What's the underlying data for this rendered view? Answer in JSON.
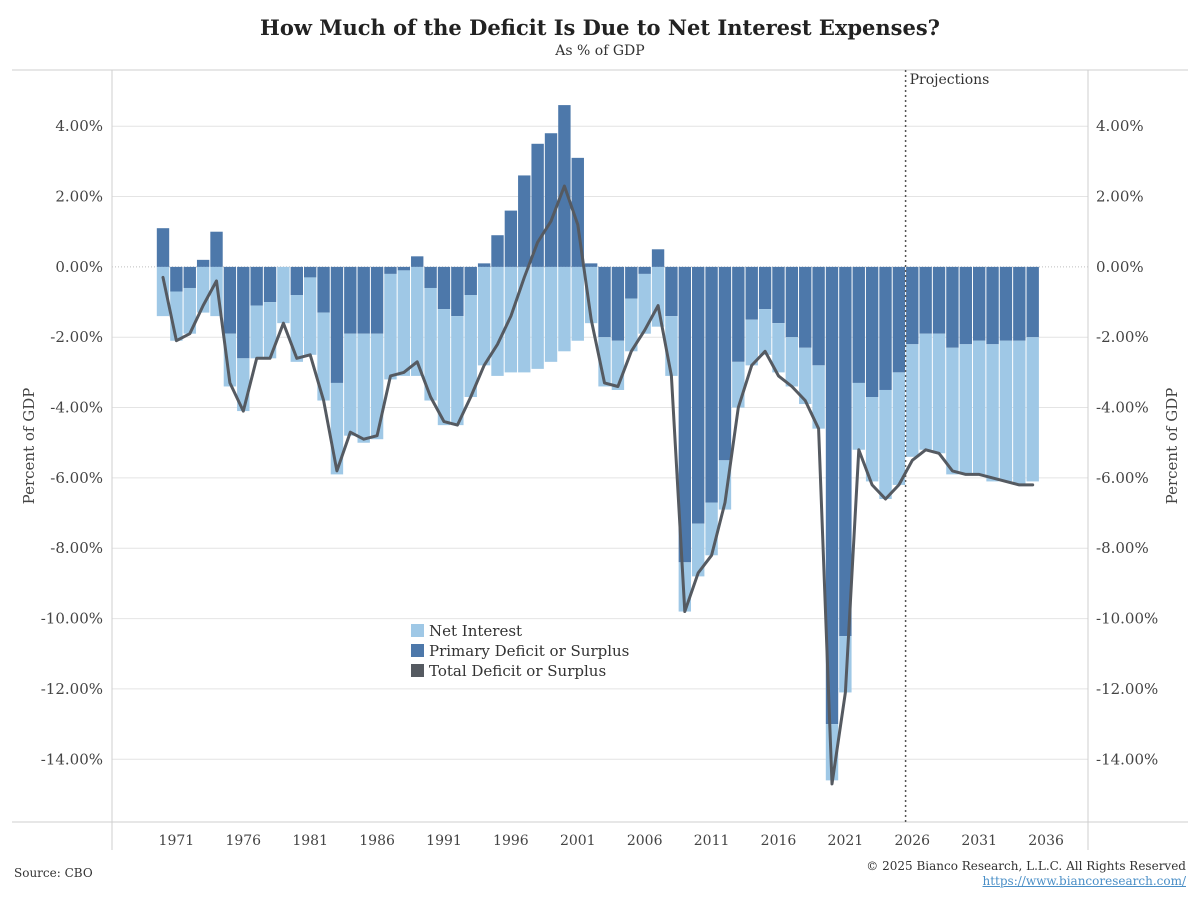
{
  "title": "How Much of the Deficit Is Due to Net Interest Expenses?",
  "subtitle": "As % of GDP",
  "source": "Source: CBO",
  "copyright": "© 2025 Bianco Research, L.L.C. All Rights Reserved",
  "url": "https://www.biancoresearch.com/",
  "colors": {
    "net_interest": "#9fc8e6",
    "primary": "#4d78aa",
    "total_line": "#555a61",
    "projection_line": "#555555",
    "grid": "#e4e4e4"
  },
  "chart_data": {
    "type": "bar",
    "title": "How Much of the Deficit Is Due to Net Interest Expenses?",
    "subtitle": "As % of GDP",
    "ylabel_left": "Percent of GDP",
    "ylabel_right": "Percent of GDP",
    "ylim": [
      -15.5,
      5.5
    ],
    "y_ticks": [
      4,
      2,
      0,
      -2,
      -4,
      -6,
      -8,
      -10,
      -12,
      -14
    ],
    "y_tick_labels": [
      "4.00%",
      "2.00%",
      "0.00%",
      "-2.00%",
      "-4.00%",
      "-6.00%",
      "-8.00%",
      "-10.00%",
      "-12.00%",
      "-14.00%"
    ],
    "x_ticks": [
      1971,
      1976,
      1981,
      1986,
      1991,
      1996,
      2001,
      2006,
      2011,
      2016,
      2021,
      2026,
      2031,
      2036
    ],
    "x_tick_labels": [
      "1971",
      "1976",
      "1981",
      "1986",
      "1991",
      "1996",
      "2001",
      "2006",
      "2011",
      "2016",
      "2021",
      "2026",
      "2031",
      "2036"
    ],
    "annotation": "Projections",
    "projection_start": 2025.5,
    "legend": [
      "Net Interest",
      "Primary Deficit or Surplus",
      "Total Deficit or Surplus"
    ],
    "legend_position": "lower-center",
    "x": [
      1970,
      1971,
      1972,
      1973,
      1974,
      1975,
      1976,
      1977,
      1978,
      1979,
      1980,
      1981,
      1982,
      1983,
      1984,
      1985,
      1986,
      1987,
      1988,
      1989,
      1990,
      1991,
      1992,
      1993,
      1994,
      1995,
      1996,
      1997,
      1998,
      1999,
      2000,
      2001,
      2002,
      2003,
      2004,
      2005,
      2006,
      2007,
      2008,
      2009,
      2010,
      2011,
      2012,
      2013,
      2014,
      2015,
      2016,
      2017,
      2018,
      2019,
      2020,
      2021,
      2022,
      2023,
      2024,
      2025,
      2026,
      2027,
      2028,
      2029,
      2030,
      2031,
      2032,
      2033,
      2034,
      2035
    ],
    "series": [
      {
        "name": "Net Interest",
        "values": [
          -1.4,
          -1.4,
          -1.3,
          -1.3,
          -1.4,
          -1.5,
          -1.5,
          -1.5,
          -1.6,
          -1.6,
          -1.9,
          -2.2,
          -2.5,
          -2.6,
          -2.9,
          -3.1,
          -3.0,
          -3.0,
          -3.0,
          -3.1,
          -3.2,
          -3.3,
          -3.1,
          -2.9,
          -2.8,
          -3.1,
          -3.0,
          -3.0,
          -2.9,
          -2.7,
          -2.4,
          -2.1,
          -1.6,
          -1.4,
          -1.4,
          -1.5,
          -1.7,
          -1.7,
          -1.7,
          -1.4,
          -1.5,
          -1.5,
          -1.4,
          -1.3,
          -1.3,
          -1.3,
          -1.4,
          -1.4,
          -1.6,
          -1.8,
          -1.6,
          -1.6,
          -1.9,
          -2.4,
          -3.1,
          -3.2,
          -3.2,
          -3.3,
          -3.4,
          -3.6,
          -3.7,
          -3.8,
          -3.9,
          -4.0,
          -4.1,
          -4.1
        ]
      },
      {
        "name": "Primary Deficit or Surplus",
        "values": [
          1.1,
          -0.7,
          -0.6,
          0.2,
          1.0,
          -1.9,
          -2.6,
          -1.1,
          -1.0,
          0.0,
          -0.8,
          -0.3,
          -1.3,
          -3.3,
          -1.9,
          -1.9,
          -1.9,
          -0.2,
          -0.1,
          0.3,
          -0.6,
          -1.2,
          -1.4,
          -0.8,
          0.1,
          0.9,
          1.6,
          2.6,
          3.5,
          3.8,
          4.6,
          3.1,
          0.1,
          -2.0,
          -2.1,
          -0.9,
          -0.2,
          0.5,
          -1.4,
          -8.4,
          -7.3,
          -6.7,
          -5.5,
          -2.7,
          -1.5,
          -1.2,
          -1.6,
          -2.0,
          -2.3,
          -2.8,
          -13.0,
          -10.5,
          -3.3,
          -3.7,
          -3.5,
          -3.0,
          -2.2,
          -1.9,
          -1.9,
          -2.3,
          -2.2,
          -2.1,
          -2.2,
          -2.1,
          -2.1,
          -2.0
        ]
      },
      {
        "name": "Total Deficit or Surplus",
        "values": [
          -0.3,
          -2.1,
          -1.9,
          -1.1,
          -0.4,
          -3.3,
          -4.1,
          -2.6,
          -2.6,
          -1.6,
          -2.6,
          -2.5,
          -3.8,
          -5.8,
          -4.7,
          -4.9,
          -4.8,
          -3.1,
          -3.0,
          -2.7,
          -3.7,
          -4.4,
          -4.5,
          -3.7,
          -2.8,
          -2.2,
          -1.4,
          -0.3,
          0.7,
          1.3,
          2.3,
          1.2,
          -1.5,
          -3.3,
          -3.4,
          -2.4,
          -1.8,
          -1.1,
          -3.1,
          -9.8,
          -8.7,
          -8.2,
          -6.7,
          -4.0,
          -2.8,
          -2.4,
          -3.1,
          -3.4,
          -3.8,
          -4.6,
          -14.7,
          -12.1,
          -5.2,
          -6.2,
          -6.6,
          -6.2,
          -5.5,
          -5.2,
          -5.3,
          -5.8,
          -5.9,
          -5.9,
          -6.0,
          -6.1,
          -6.2,
          -6.2
        ]
      }
    ]
  }
}
